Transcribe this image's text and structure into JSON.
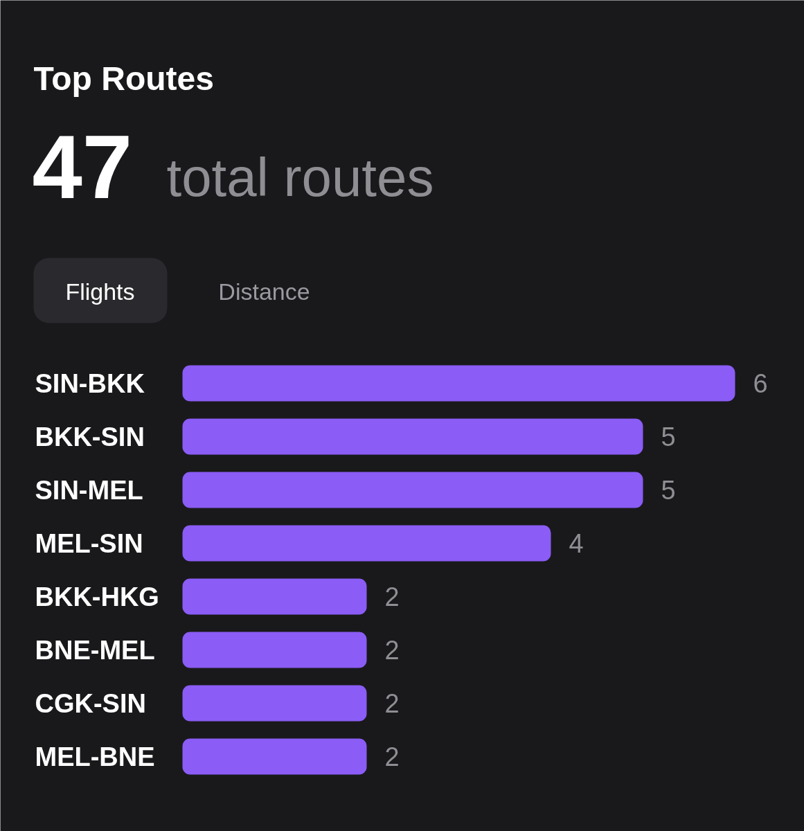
{
  "chart_data": {
    "type": "bar",
    "orientation": "horizontal",
    "title": "Top Routes",
    "subtitle": "47 total routes",
    "annotations": [
      "Flights",
      "Distance"
    ],
    "categories": [
      "SIN-BKK",
      "BKK-SIN",
      "SIN-MEL",
      "MEL-SIN",
      "BKK-HKG",
      "BNE-MEL",
      "CGK-SIN",
      "MEL-BNE"
    ],
    "values": [
      6,
      5,
      5,
      4,
      2,
      2,
      2,
      2
    ],
    "color": "#8b5cf6",
    "data_labels": true
  }
}
